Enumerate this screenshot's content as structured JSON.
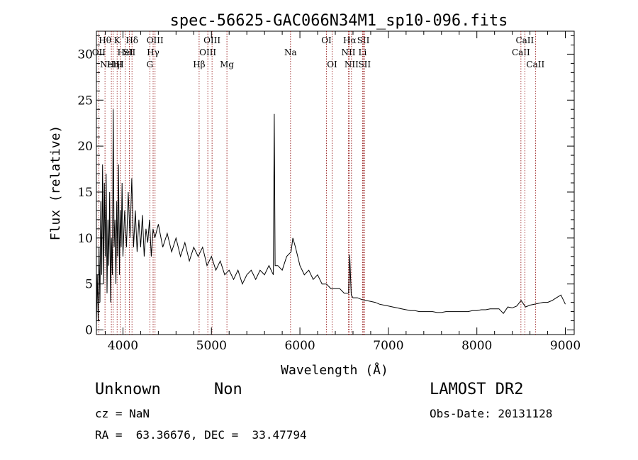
{
  "chart_data": {
    "type": "line",
    "title": "spec-56625-GAC066N34M1_sp10-096.fits",
    "xlabel": "Wavelength (Å)",
    "ylabel": "Flux (relative)",
    "xlim": [
      3700,
      9100
    ],
    "ylim": [
      -0.5,
      32.5
    ],
    "xticks": [
      4000,
      5000,
      6000,
      7000,
      8000,
      9000
    ],
    "yticks": [
      0,
      5,
      10,
      15,
      20,
      25,
      30
    ],
    "grid": false,
    "line_color": "#000000",
    "marker_color": "#8b0000",
    "series": [
      {
        "values_xy": [
          [
            3700,
            0.5
          ],
          [
            3710,
            6
          ],
          [
            3720,
            1
          ],
          [
            3730,
            9
          ],
          [
            3740,
            3
          ],
          [
            3750,
            14
          ],
          [
            3760,
            6
          ],
          [
            3770,
            18
          ],
          [
            3780,
            5
          ],
          [
            3790,
            16
          ],
          [
            3800,
            8
          ],
          [
            3810,
            17
          ],
          [
            3820,
            4
          ],
          [
            3830,
            12
          ],
          [
            3840,
            7
          ],
          [
            3850,
            15
          ],
          [
            3860,
            3
          ],
          [
            3870,
            10
          ],
          [
            3880,
            6
          ],
          [
            3890,
            24
          ],
          [
            3900,
            9
          ],
          [
            3910,
            12
          ],
          [
            3920,
            5
          ],
          [
            3930,
            14
          ],
          [
            3940,
            8
          ],
          [
            3950,
            18
          ],
          [
            3960,
            6
          ],
          [
            3970,
            13
          ],
          [
            3980,
            9
          ],
          [
            3990,
            16
          ],
          [
            4000,
            8
          ],
          [
            4020,
            13
          ],
          [
            4040,
            9
          ],
          [
            4060,
            15
          ],
          [
            4080,
            10
          ],
          [
            4100,
            16.5
          ],
          [
            4120,
            9
          ],
          [
            4140,
            13
          ],
          [
            4160,
            8.5
          ],
          [
            4180,
            12
          ],
          [
            4200,
            9
          ],
          [
            4220,
            12.5
          ],
          [
            4240,
            8
          ],
          [
            4260,
            11
          ],
          [
            4280,
            9.5
          ],
          [
            4300,
            12
          ],
          [
            4320,
            8
          ],
          [
            4340,
            11
          ],
          [
            4360,
            10
          ],
          [
            4400,
            11.5
          ],
          [
            4450,
            9
          ],
          [
            4500,
            10.5
          ],
          [
            4550,
            8.5
          ],
          [
            4600,
            10
          ],
          [
            4650,
            8
          ],
          [
            4700,
            9.5
          ],
          [
            4750,
            7.5
          ],
          [
            4800,
            9
          ],
          [
            4850,
            8
          ],
          [
            4900,
            9
          ],
          [
            4950,
            7
          ],
          [
            5000,
            8
          ],
          [
            5050,
            6.5
          ],
          [
            5100,
            7.5
          ],
          [
            5150,
            6
          ],
          [
            5200,
            6.5
          ],
          [
            5250,
            5.5
          ],
          [
            5300,
            6.5
          ],
          [
            5350,
            5
          ],
          [
            5400,
            6
          ],
          [
            5450,
            6.5
          ],
          [
            5500,
            5.5
          ],
          [
            5550,
            6.5
          ],
          [
            5600,
            6
          ],
          [
            5650,
            7
          ],
          [
            5700,
            6
          ],
          [
            5710,
            23.5
          ],
          [
            5720,
            7
          ],
          [
            5750,
            7
          ],
          [
            5800,
            6.5
          ],
          [
            5850,
            8
          ],
          [
            5900,
            8.5
          ],
          [
            5920,
            10
          ],
          [
            5950,
            9
          ],
          [
            6000,
            7
          ],
          [
            6050,
            6
          ],
          [
            6100,
            6.5
          ],
          [
            6150,
            5.5
          ],
          [
            6200,
            6
          ],
          [
            6250,
            5
          ],
          [
            6300,
            5
          ],
          [
            6350,
            4.5
          ],
          [
            6400,
            4.5
          ],
          [
            6450,
            4.5
          ],
          [
            6500,
            4
          ],
          [
            6550,
            4
          ],
          [
            6563,
            8.2
          ],
          [
            6580,
            3.8
          ],
          [
            6600,
            3.5
          ],
          [
            6650,
            3.5
          ],
          [
            6700,
            3.3
          ],
          [
            6750,
            3.2
          ],
          [
            6800,
            3.1
          ],
          [
            6850,
            3
          ],
          [
            6900,
            2.8
          ],
          [
            6950,
            2.7
          ],
          [
            7000,
            2.6
          ],
          [
            7050,
            2.5
          ],
          [
            7100,
            2.4
          ],
          [
            7150,
            2.3
          ],
          [
            7200,
            2.2
          ],
          [
            7250,
            2.1
          ],
          [
            7300,
            2.1
          ],
          [
            7350,
            2
          ],
          [
            7400,
            2
          ],
          [
            7450,
            2
          ],
          [
            7500,
            2
          ],
          [
            7550,
            1.9
          ],
          [
            7600,
            1.9
          ],
          [
            7650,
            2
          ],
          [
            7700,
            2
          ],
          [
            7750,
            2
          ],
          [
            7800,
            2
          ],
          [
            7850,
            2
          ],
          [
            7900,
            2
          ],
          [
            7950,
            2.1
          ],
          [
            8000,
            2.1
          ],
          [
            8050,
            2.2
          ],
          [
            8100,
            2.2
          ],
          [
            8150,
            2.3
          ],
          [
            8200,
            2.3
          ],
          [
            8250,
            2.3
          ],
          [
            8300,
            1.8
          ],
          [
            8350,
            2.5
          ],
          [
            8400,
            2.4
          ],
          [
            8450,
            2.6
          ],
          [
            8500,
            3.2
          ],
          [
            8550,
            2.5
          ],
          [
            8600,
            2.7
          ],
          [
            8650,
            2.8
          ],
          [
            8700,
            2.9
          ],
          [
            8750,
            3
          ],
          [
            8800,
            3
          ],
          [
            8850,
            3.2
          ],
          [
            8900,
            3.5
          ],
          [
            8950,
            3.8
          ],
          [
            9000,
            2.8
          ]
        ]
      }
    ],
    "line_markers": [
      {
        "x": 3797,
        "label": "Hθ",
        "row": 0
      },
      {
        "x": 3727,
        "label": "OII",
        "row": 1
      },
      {
        "x": 3869,
        "label": "NeIII",
        "row": 2
      },
      {
        "x": 3889,
        "label": "Hη",
        "row": 2
      },
      {
        "x": 3934,
        "label": "K",
        "row": 0
      },
      {
        "x": 3968,
        "label": "H",
        "row": 2
      },
      {
        "x": 4026,
        "label": "HeI",
        "row": 1
      },
      {
        "x": 4072,
        "label": "SII",
        "row": 1
      },
      {
        "x": 4102,
        "label": "Hδ",
        "row": 0
      },
      {
        "x": 4304,
        "label": "G",
        "row": 2
      },
      {
        "x": 4341,
        "label": "Hγ",
        "row": 1
      },
      {
        "x": 4363,
        "label": "OIII",
        "row": 0
      },
      {
        "x": 4861,
        "label": "Hβ",
        "row": 2
      },
      {
        "x": 4959,
        "label": "OIII",
        "row": 1
      },
      {
        "x": 5007,
        "label": "OIII",
        "row": 0
      },
      {
        "x": 5175,
        "label": "Mg",
        "row": 2
      },
      {
        "x": 5894,
        "label": "Na",
        "row": 1
      },
      {
        "x": 6300,
        "label": "OI",
        "row": 0
      },
      {
        "x": 6364,
        "label": "OI",
        "row": 2
      },
      {
        "x": 6548,
        "label": "NII",
        "row": 1
      },
      {
        "x": 6563,
        "label": "Hα",
        "row": 0
      },
      {
        "x": 6583,
        "label": "NII",
        "row": 2
      },
      {
        "x": 6708,
        "label": "Li",
        "row": 1
      },
      {
        "x": 6717,
        "label": "SII",
        "row": 0
      },
      {
        "x": 6731,
        "label": "SII",
        "row": 2
      },
      {
        "x": 8498,
        "label": "CaII",
        "row": 1
      },
      {
        "x": 8542,
        "label": "CaII",
        "row": 0
      },
      {
        "x": 8662,
        "label": "CaII",
        "row": 2
      }
    ]
  },
  "info": {
    "classification": "Unknown",
    "subclass": "Non",
    "cz": "cz = NaN",
    "radec": "RA =  63.36676, DEC =  33.47794",
    "survey": "LAMOST DR2",
    "obs_date": "Obs-Date: 20131128"
  }
}
